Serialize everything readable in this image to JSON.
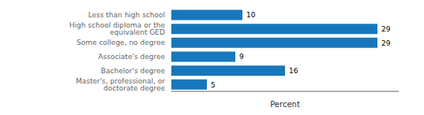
{
  "chart_data": {
    "type": "bar",
    "orientation": "horizontal",
    "categories": [
      "Less than high school",
      "High school diploma or the equivalent GED",
      "Some college, no degree",
      "Associate's degree",
      "Bachelor's degree",
      "Master's, professional, or doctorate degree"
    ],
    "values": [
      10,
      29,
      29,
      9,
      16,
      5
    ],
    "color": "#1777bc",
    "xlabel": "Percent",
    "xlim": [
      0,
      32
    ],
    "xticks": [],
    "data_labels": true,
    "tick_labels": "y",
    "grid": false
  }
}
